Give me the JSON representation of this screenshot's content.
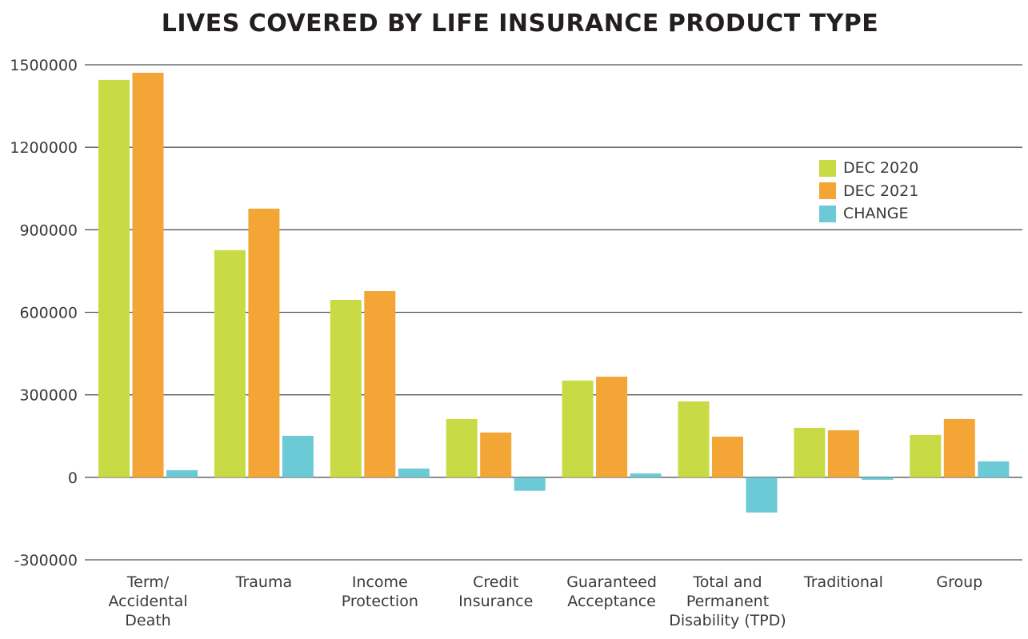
{
  "chart_data": {
    "type": "bar",
    "title": "LIVES COVERED BY LIFE INSURANCE PRODUCT TYPE",
    "xlabel": "",
    "ylabel": "",
    "ylim": [
      -300000,
      1500000
    ],
    "yticks": [
      -300000,
      0,
      300000,
      600000,
      900000,
      1200000,
      1500000
    ],
    "ytick_labels": [
      "-300000",
      "0",
      "300000",
      "600000",
      "900000",
      "1200000",
      "1500000"
    ],
    "grid": true,
    "legend_position": "right",
    "categories": [
      [
        "Term/",
        "Accidental",
        "Death"
      ],
      [
        "Trauma"
      ],
      [
        "Income",
        "Protection"
      ],
      [
        "Credit",
        "Insurance"
      ],
      [
        "Guaranteed",
        "Acceptance"
      ],
      [
        "Total and",
        "Permanent",
        "Disability (TPD)"
      ],
      [
        "Traditional"
      ],
      [
        "Group"
      ]
    ],
    "series": [
      {
        "name": "DEC 2020",
        "color": "#c8da44",
        "values": [
          1445000,
          826000,
          645000,
          212000,
          352000,
          276000,
          180000,
          154000
        ]
      },
      {
        "name": "DEC 2021",
        "color": "#f3a535",
        "values": [
          1471000,
          977000,
          677000,
          163000,
          366000,
          148000,
          171000,
          212000
        ]
      },
      {
        "name": "CHANGE",
        "color": "#6ccad6",
        "values": [
          26000,
          151000,
          32000,
          -49000,
          14000,
          -128000,
          -9000,
          58000
        ]
      }
    ]
  }
}
